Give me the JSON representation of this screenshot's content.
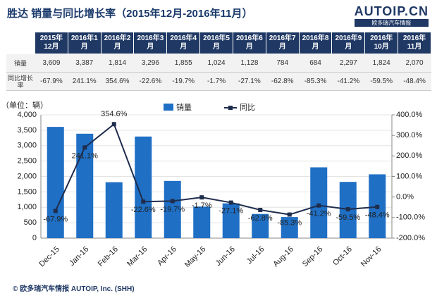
{
  "title": "胜达 销量与同比增长率（2015年12月-2016年11月）",
  "logo": {
    "name": "AUTOIP.CN",
    "tagline": "欧多瑞汽车情报"
  },
  "table": {
    "columns": [
      "2015年12月",
      "2016年1月",
      "2016年2月",
      "2016年3月",
      "2016年4月",
      "2016年5月",
      "2016年6月",
      "2016年7月",
      "2016年8月",
      "2016年9月",
      "2016年10月",
      "2016年11月"
    ],
    "row_labels": [
      "销量",
      "同比增长率"
    ]
  },
  "chart_data": {
    "type": "bar-line",
    "unit_label": "（单位：辆）",
    "categories": [
      "Dec-15",
      "Jan-16",
      "Feb-16",
      "Mar-16",
      "Apr-16",
      "May-16",
      "Jun-16",
      "Jul-16",
      "Aug-16",
      "Sep-16",
      "Oct-16",
      "Nov-16"
    ],
    "series": [
      {
        "name": "销量",
        "color": "#1f6fc5",
        "values": [
          3609,
          3387,
          1814,
          3296,
          1855,
          1024,
          1128,
          784,
          684,
          2297,
          1824,
          2070
        ],
        "value_labels": [
          "3,609",
          "3,387",
          "1,814",
          "3,296",
          "1,855",
          "1,024",
          "1,128",
          "784",
          "684",
          "2,297",
          "1,824",
          "2,070"
        ]
      },
      {
        "name": "同比",
        "color": "#1f2d4d",
        "axis": "y2",
        "values": [
          -67.9,
          241.1,
          354.6,
          -22.6,
          -19.7,
          -1.7,
          -27.1,
          -62.8,
          -85.3,
          -41.2,
          -59.5,
          -48.4
        ],
        "value_labels": [
          "-67.9%",
          "241.1%",
          "354.6%",
          "-22.6%",
          "-19.7%",
          "-1.7%",
          "-27.1%",
          "-62.8%",
          "-85.3%",
          "-41.2%",
          "-59.5%",
          "-48.4%"
        ]
      }
    ],
    "ylim": [
      0,
      4000
    ],
    "yticks": [
      0,
      500,
      {
        "value": 1000,
        "label": "1,000"
      },
      {
        "value": 1500,
        "label": "1,500"
      },
      {
        "value": 2000,
        "label": "2,000"
      },
      {
        "value": 2500,
        "label": "2,500"
      },
      {
        "value": 3000,
        "label": "3,000"
      },
      {
        "value": 3500,
        "label": "3,500"
      },
      {
        "value": 4000,
        "label": "4,000"
      }
    ],
    "y2lim": [
      -200,
      400
    ],
    "y2ticks": [
      {
        "value": -200,
        "label": "-200.0%"
      },
      {
        "value": -100,
        "label": "-100.0%"
      },
      {
        "value": 0,
        "label": "0.0%"
      },
      {
        "value": 100,
        "label": "100.0%"
      },
      {
        "value": 200,
        "label": "200.0%"
      },
      {
        "value": 300,
        "label": "300.0%"
      },
      {
        "value": 400,
        "label": "400.0%"
      }
    ],
    "grid": true
  },
  "footer": "© 欧多瑞汽车情报  AUTOIP, Inc. (SHH)"
}
